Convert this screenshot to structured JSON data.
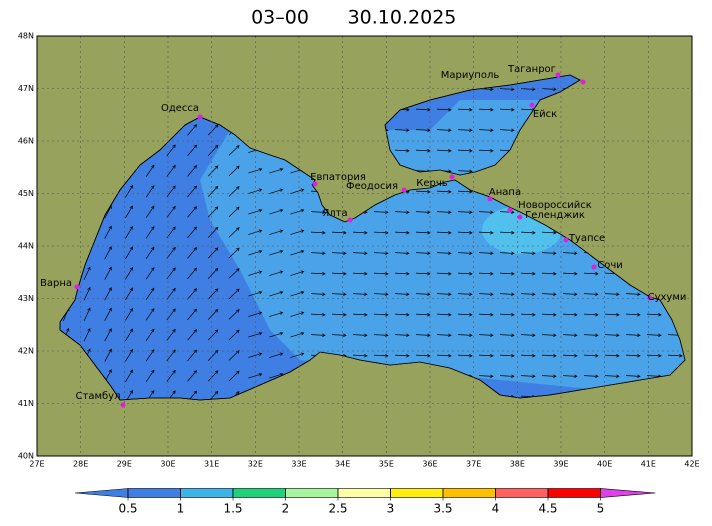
{
  "header": {
    "time": "03–00",
    "date": "30.10.2025"
  },
  "map": {
    "lat_labels": [
      "48N",
      "47N",
      "46N",
      "45N",
      "44N",
      "43N",
      "42N",
      "41N",
      "40N"
    ],
    "lon_labels": [
      "27E",
      "28E",
      "29E",
      "30E",
      "31E",
      "32E",
      "33E",
      "34E",
      "35E",
      "36E",
      "37E",
      "38E",
      "39E",
      "40E",
      "41E",
      "42E"
    ],
    "cities": [
      "Одесса",
      "Мариуполь",
      "Таганрог",
      "Ейск",
      "Евпатория",
      "Феодосия",
      "Керчь",
      "Анапа",
      "Новороссийск",
      "Геленджик",
      "Ялта",
      "Туапсе",
      "Сочи",
      "Сухуми",
      "Варна",
      "Стамбул"
    ],
    "land_color": "#97a25d",
    "sea_color": "#3f7fe4",
    "sea_light_color": "#4aa3e8"
  },
  "colorbar": {
    "ticks": [
      0.5,
      1,
      1.5,
      2,
      2.5,
      3,
      3.5,
      4,
      4.5,
      5
    ],
    "colors": [
      "#3f7fe4",
      "#3f7fe4",
      "#3cb4e8",
      "#1fd27a",
      "#a8f5a0",
      "#ffffa8",
      "#ffee10",
      "#ffc000",
      "#ff6060",
      "#ff0000",
      "#e040e8"
    ]
  }
}
